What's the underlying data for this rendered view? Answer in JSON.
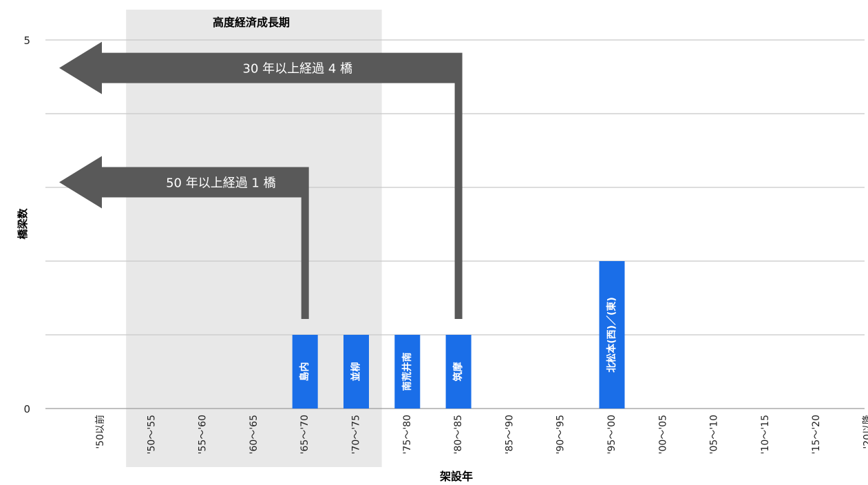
{
  "colors": {
    "bar": "#1a6ee8",
    "arrow": "#595959",
    "era_band": "#e8e8e8",
    "grid": "#c8c8c8",
    "text": "#222222",
    "bar_text": "#ffffff",
    "arrow_text": "#ffffff"
  },
  "chart_data": {
    "type": "bar",
    "xlabel": "架設年",
    "ylabel": "橋梁数",
    "ylim": [
      0,
      5
    ],
    "ytick_labels": [
      "0",
      "5"
    ],
    "grid": true,
    "categories": [
      "'50以前",
      "'50～'55",
      "'55～'60",
      "'60～'65",
      "'65～'70",
      "'70～'75",
      "'75～'80",
      "'80～'85",
      "'85～'90",
      "'90～'95",
      "'95～'00",
      "'00～'05",
      "'05～'10",
      "'10～'15",
      "'15～'20",
      "'20以降"
    ],
    "values": [
      0,
      0,
      0,
      0,
      1,
      1,
      1,
      1,
      0,
      0,
      2,
      0,
      0,
      0,
      0,
      0
    ],
    "bar_labels": [
      "",
      "",
      "",
      "",
      "島内",
      "並柳",
      "南荒井南",
      "筑摩",
      "",
      "",
      "北松本(西)／(東)",
      "",
      "",
      "",
      "",
      ""
    ],
    "era_band": {
      "label": "高度経済成長期",
      "from_category": "'50～'55",
      "to_category": "'70～'75"
    },
    "annotations": [
      {
        "text": "30 年以上経過  4 橋",
        "bridge_count": 4,
        "from_category": "'80～'85",
        "level": 4.62
      },
      {
        "text": "50 年以上経過  1 橋",
        "bridge_count": 1,
        "from_category": "'65～'70",
        "level": 3.07
      }
    ]
  }
}
